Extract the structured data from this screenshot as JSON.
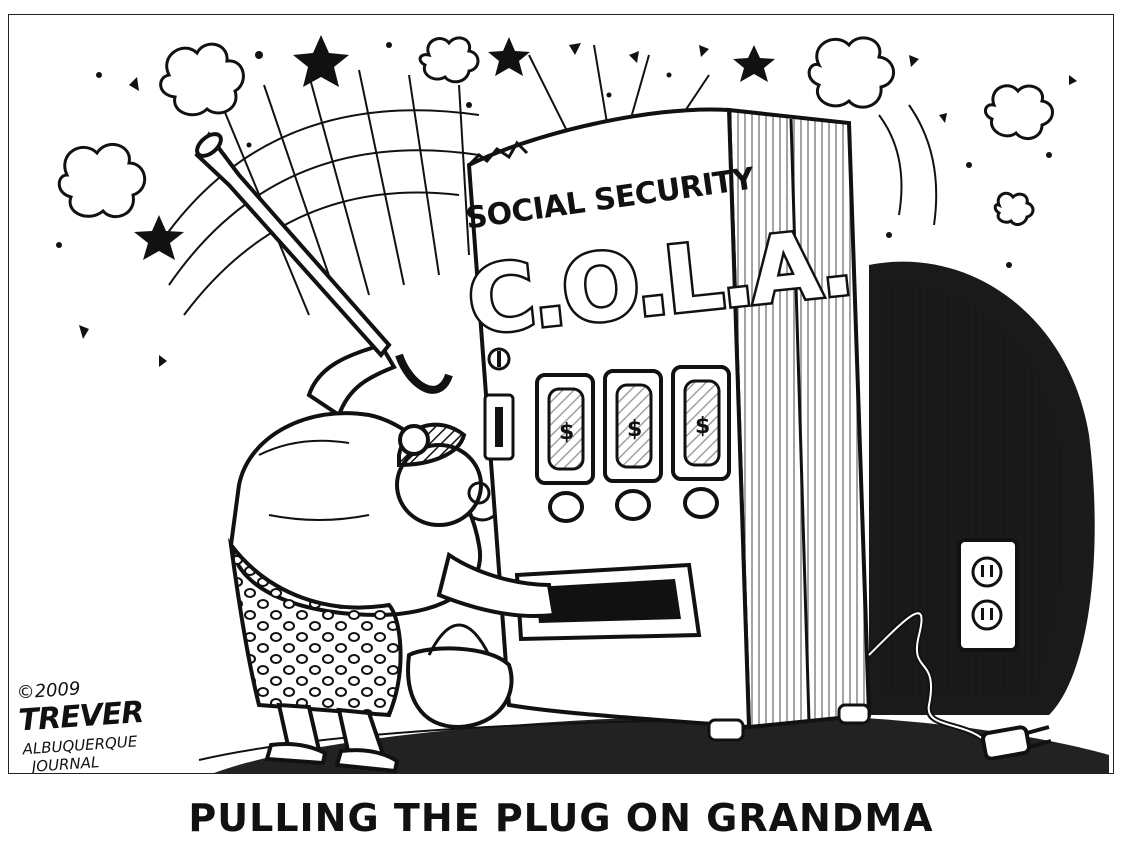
{
  "cartoon": {
    "machine_label": "SOCIAL SECURITY",
    "machine_logo": "C.O.L.A.",
    "slot_symbols": [
      "$",
      "$",
      "$"
    ],
    "signature": {
      "year": "©2009",
      "artist": "TREVER",
      "publication_line1": "ALBUQUERQUE",
      "publication_line2": "JOURNAL"
    },
    "caption": "PULLING THE PLUG ON GRANDMA"
  },
  "icons": [
    "cloud-icon",
    "star-icon",
    "power-outlet-icon",
    "electric-plug-icon",
    "dollar-can-icon",
    "cane-icon",
    "handbag-icon"
  ],
  "colors": {
    "ink": "#111111",
    "paper": "#ffffff",
    "shadow": "#1a1a1a"
  }
}
